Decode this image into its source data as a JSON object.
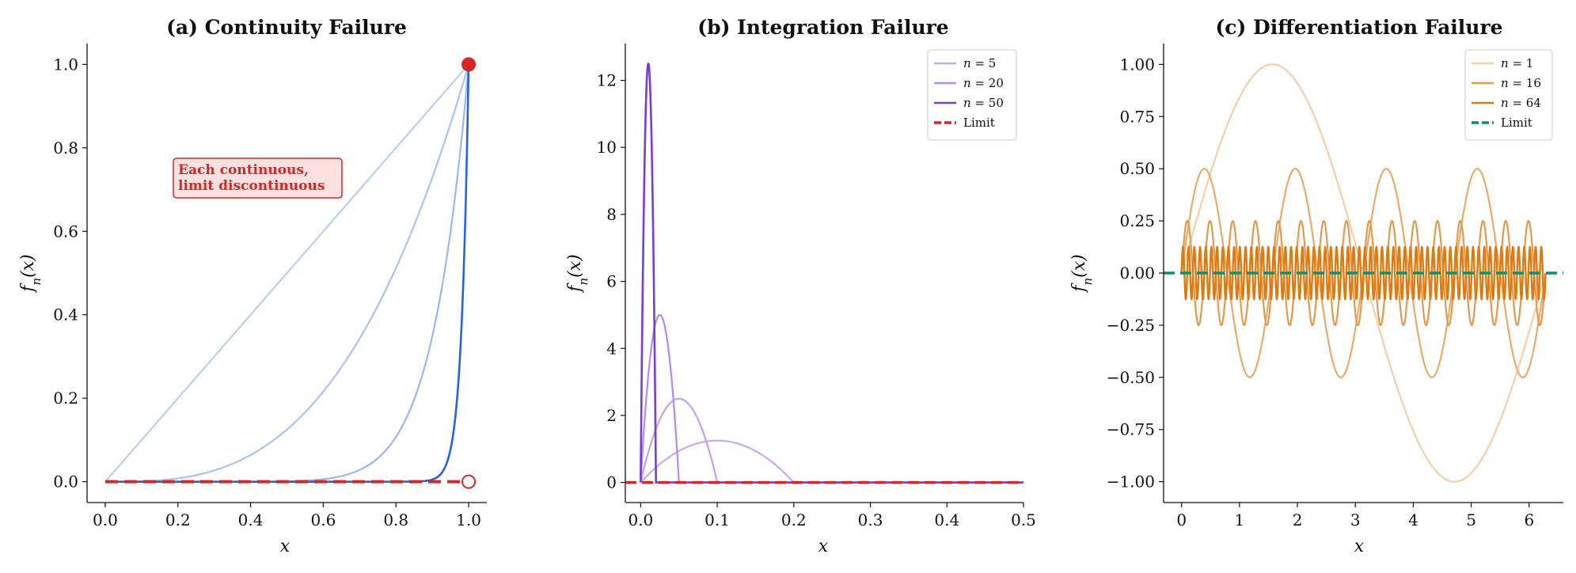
{
  "chart_data": [
    {
      "type": "line",
      "title": "(a) Continuity Failure",
      "xlabel": "x",
      "ylabel": "f_n(x)",
      "xlim": [
        -0.05,
        1.05
      ],
      "ylim": [
        -0.05,
        1.05
      ],
      "xticks": [
        0.0,
        0.2,
        0.4,
        0.6,
        0.8,
        1.0
      ],
      "xtick_labels": [
        "0.0",
        "0.2",
        "0.4",
        "0.6",
        "0.8",
        "1.0"
      ],
      "yticks": [
        0.0,
        0.2,
        0.4,
        0.6,
        0.8,
        1.0
      ],
      "ytick_labels": [
        "0.0",
        "0.2",
        "0.4",
        "0.6",
        "0.8",
        "1.0"
      ],
      "function": "x^n",
      "series": [
        {
          "n": 1,
          "color": "#b7cff2"
        },
        {
          "n": 3,
          "color": "#a9c4f0"
        },
        {
          "n": 10,
          "color": "#9bb8ee"
        },
        {
          "n": 50,
          "color": "#2a62d9"
        }
      ],
      "limit": {
        "description": "0 for x<1, 1 at x=1",
        "color": "#d62728"
      },
      "markers": [
        {
          "x": 1.0,
          "y": 1.0,
          "style": "filled",
          "color": "#d62728"
        },
        {
          "x": 1.0,
          "y": 0.0,
          "style": "open",
          "color": "#d62728"
        }
      ],
      "annotation": {
        "lines": [
          "Each continuous,",
          "limit discontinuous"
        ],
        "x": 0.2,
        "y": 0.75,
        "color": "#d62728",
        "bg": "#fde0e0"
      },
      "grid": false
    },
    {
      "type": "line",
      "title": "(b) Integration Failure",
      "xlabel": "x",
      "ylabel": "f_n(x)",
      "xlim": [
        -0.02,
        0.5
      ],
      "ylim": [
        -0.6,
        13.1
      ],
      "xticks": [
        0.0,
        0.1,
        0.2,
        0.3,
        0.4,
        0.5
      ],
      "xtick_labels": [
        "0.0",
        "0.1",
        "0.2",
        "0.3",
        "0.4",
        "0.5"
      ],
      "yticks": [
        0,
        2,
        4,
        6,
        8,
        10,
        12
      ],
      "ytick_labels": [
        "0",
        "2",
        "4",
        "6",
        "8",
        "10",
        "12"
      ],
      "function": "n^2 x (1 - n x) on [0, 1/n], else 0",
      "series": [
        {
          "n": 5,
          "name": "n = 5",
          "color": "#caa8f2"
        },
        {
          "n": 10,
          "color": "#c3a0f0"
        },
        {
          "n": 20,
          "name": "n = 20",
          "color": "#b48aed"
        },
        {
          "n": 50,
          "name": "n = 50",
          "color": "#7c3ad6"
        }
      ],
      "limit": {
        "name": "Limit",
        "value": 0,
        "color": "#d62728"
      },
      "legend": "top-right",
      "grid": false
    },
    {
      "type": "line",
      "title": "(c) Differentiation Failure",
      "xlabel": "x",
      "ylabel": "f_n(x)",
      "xlim": [
        -0.31,
        6.59
      ],
      "ylim": [
        -1.1,
        1.1
      ],
      "xticks": [
        0,
        1,
        2,
        3,
        4,
        5,
        6
      ],
      "xtick_labels": [
        "0",
        "1",
        "2",
        "3",
        "4",
        "5",
        "6"
      ],
      "yticks": [
        1.0,
        0.75,
        0.5,
        0.25,
        0.0,
        -0.25,
        -0.5,
        -0.75,
        -1.0
      ],
      "ytick_labels": [
        "1.00",
        "0.75",
        "0.50",
        "0.25",
        "0.00",
        "−0.25",
        "−0.50",
        "−0.75",
        "−1.00"
      ],
      "function": "sin(n x) / sqrt(n), x in [0, 2π]",
      "series": [
        {
          "n": 1,
          "name": "n = 1",
          "color": "#f5cfa6"
        },
        {
          "n": 4,
          "color": "#e9ab6b"
        },
        {
          "n": 16,
          "name": "n = 16",
          "color": "#e29a4e"
        },
        {
          "n": 64,
          "name": "n = 64",
          "color": "#dd7a10"
        }
      ],
      "limit": {
        "name": "Limit",
        "value": 0,
        "color": "#10906a"
      },
      "legend": "top-right",
      "grid": false
    }
  ]
}
